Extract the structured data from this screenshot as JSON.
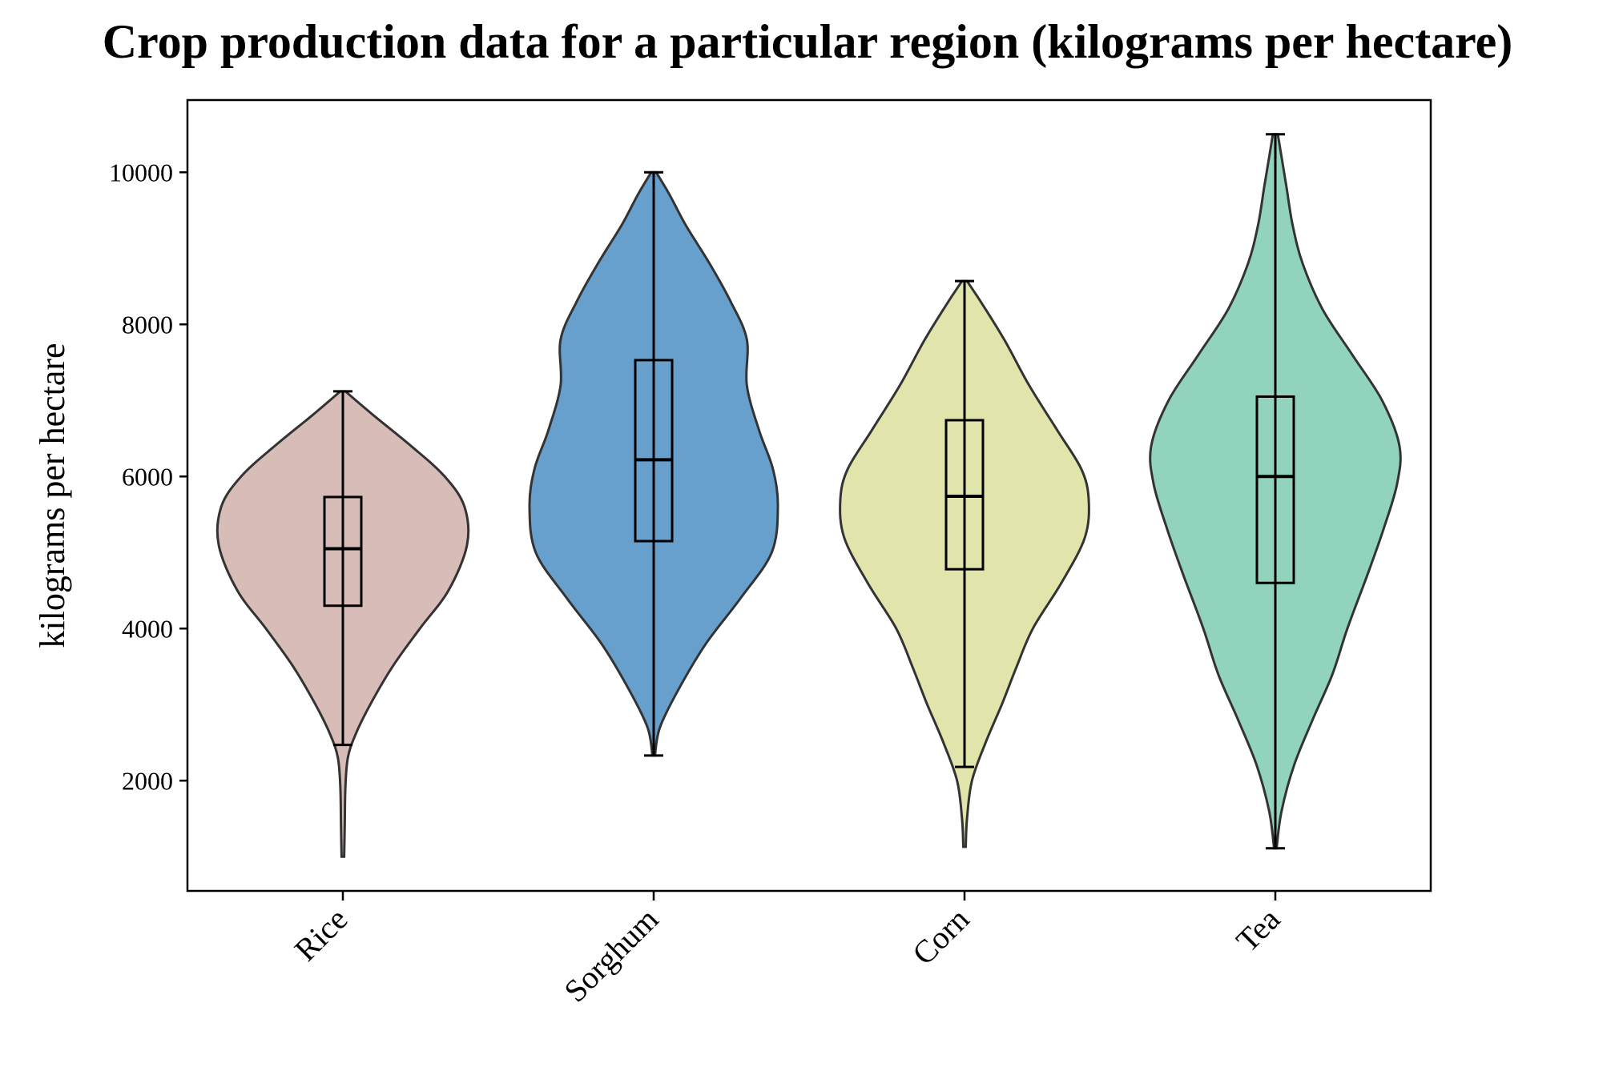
{
  "chart_data": {
    "type": "violin",
    "title": "Crop production data for a particular region (kilograms per hectare)",
    "xlabel": "",
    "ylabel": "kilograms per hectare",
    "ylim": [
      550,
      10950
    ],
    "yticks": [
      2000,
      4000,
      6000,
      8000,
      10000
    ],
    "ytick_labels": [
      "2000",
      "4000",
      "6000",
      "8000",
      "10000"
    ],
    "grid": false,
    "legend": "none",
    "categories": [
      "Rice",
      "Sorghum",
      "Corn",
      "Tea"
    ],
    "series": [
      {
        "category": "Rice",
        "color": "#c9a29b",
        "min": 1000,
        "q1": 4300,
        "median": 5050,
        "q3": 5730,
        "max": 7120,
        "whisker_low": 2470,
        "whisker_high": 7120,
        "density": [
          [
            1000,
            0.01
          ],
          [
            1400,
            0.015
          ],
          [
            1900,
            0.02
          ],
          [
            2300,
            0.04
          ],
          [
            2600,
            0.1
          ],
          [
            3000,
            0.22
          ],
          [
            3500,
            0.4
          ],
          [
            4000,
            0.62
          ],
          [
            4500,
            0.85
          ],
          [
            5100,
            1.0
          ],
          [
            5600,
            0.98
          ],
          [
            6000,
            0.82
          ],
          [
            6400,
            0.55
          ],
          [
            6800,
            0.25
          ],
          [
            7120,
            0.02
          ]
        ]
      },
      {
        "category": "Sorghum",
        "color": "#2c7bba",
        "min": 2330,
        "q1": 5150,
        "median": 6220,
        "q3": 7530,
        "max": 10000,
        "whisker_low": 2330,
        "whisker_high": 10000,
        "density": [
          [
            2330,
            0.01
          ],
          [
            2700,
            0.05
          ],
          [
            3200,
            0.2
          ],
          [
            3800,
            0.42
          ],
          [
            4400,
            0.7
          ],
          [
            5000,
            0.95
          ],
          [
            5600,
            1.0
          ],
          [
            6100,
            0.96
          ],
          [
            6600,
            0.85
          ],
          [
            7200,
            0.75
          ],
          [
            7800,
            0.75
          ],
          [
            8300,
            0.62
          ],
          [
            8800,
            0.45
          ],
          [
            9300,
            0.26
          ],
          [
            9700,
            0.13
          ],
          [
            10000,
            0.02
          ]
        ]
      },
      {
        "category": "Corn",
        "color": "#d6d98b",
        "min": 1130,
        "q1": 4780,
        "median": 5740,
        "q3": 6740,
        "max": 8570,
        "whisker_low": 2180,
        "whisker_high": 8570,
        "density": [
          [
            1130,
            0.01
          ],
          [
            1500,
            0.02
          ],
          [
            2000,
            0.06
          ],
          [
            2500,
            0.17
          ],
          [
            3000,
            0.3
          ],
          [
            3500,
            0.42
          ],
          [
            4000,
            0.55
          ],
          [
            4600,
            0.78
          ],
          [
            5200,
            0.97
          ],
          [
            5700,
            1.0
          ],
          [
            6100,
            0.94
          ],
          [
            6600,
            0.75
          ],
          [
            7200,
            0.52
          ],
          [
            7800,
            0.32
          ],
          [
            8300,
            0.13
          ],
          [
            8570,
            0.02
          ]
        ]
      },
      {
        "category": "Tea",
        "color": "#66c2a4",
        "min": 1110,
        "q1": 4600,
        "median": 6000,
        "q3": 7050,
        "max": 10500,
        "whisker_low": 1110,
        "whisker_high": 10500,
        "density": [
          [
            1110,
            0.01
          ],
          [
            1600,
            0.05
          ],
          [
            2200,
            0.15
          ],
          [
            2800,
            0.3
          ],
          [
            3400,
            0.46
          ],
          [
            4000,
            0.58
          ],
          [
            4700,
            0.74
          ],
          [
            5300,
            0.87
          ],
          [
            5900,
            0.98
          ],
          [
            6400,
            1.0
          ],
          [
            7000,
            0.86
          ],
          [
            7600,
            0.62
          ],
          [
            8200,
            0.38
          ],
          [
            8800,
            0.22
          ],
          [
            9300,
            0.14
          ],
          [
            9800,
            0.09
          ],
          [
            10200,
            0.05
          ],
          [
            10500,
            0.02
          ]
        ]
      }
    ]
  }
}
